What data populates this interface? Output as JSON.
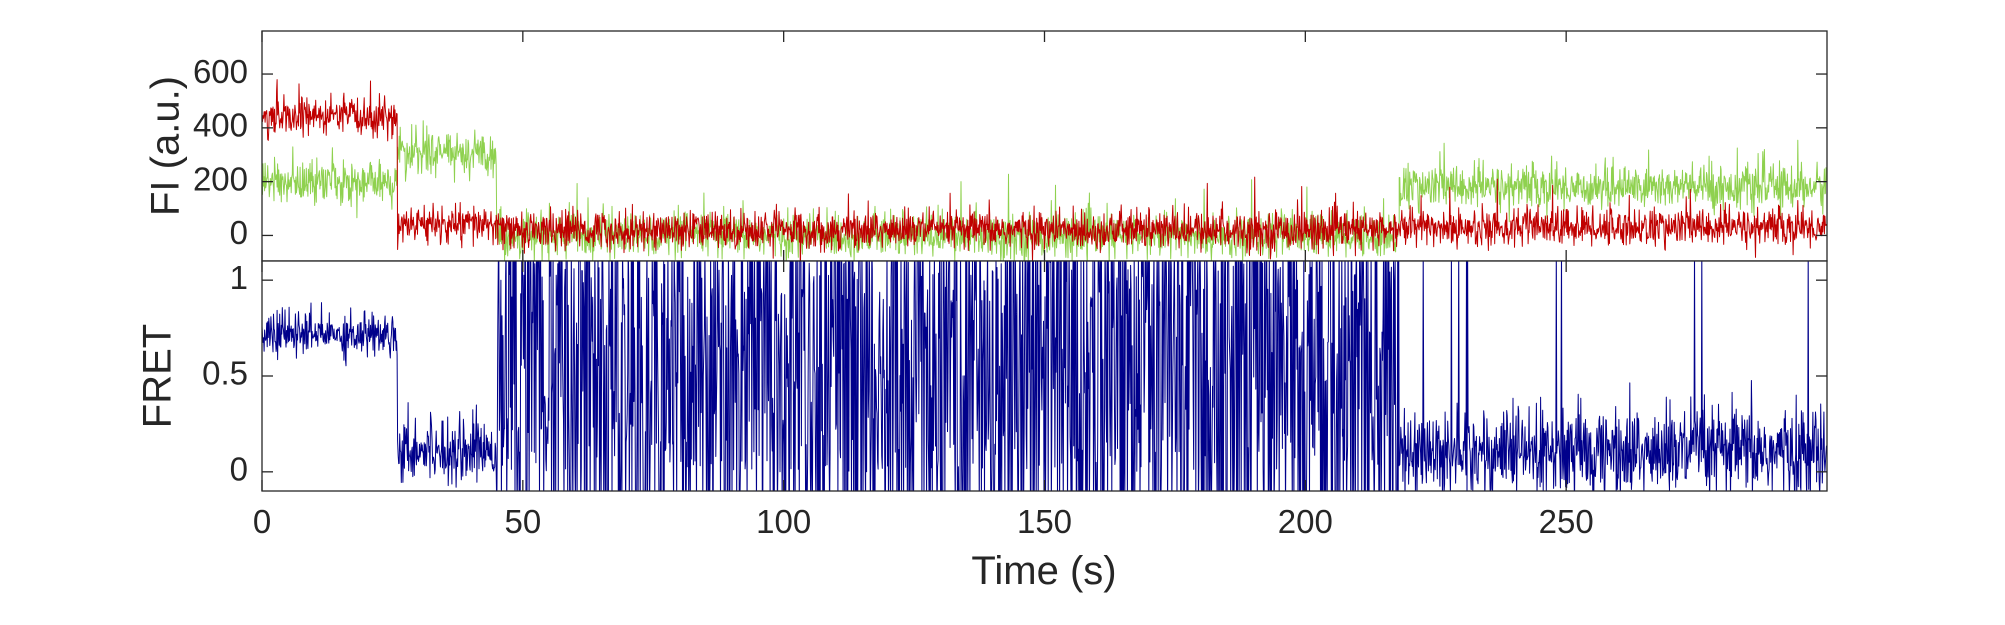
{
  "chart_data": [
    {
      "id": "fluorescence",
      "type": "line",
      "title": "",
      "xlabel": "",
      "ylabel": "FI (a.u.)",
      "xlim": [
        0,
        300
      ],
      "ylim": [
        -95,
        760
      ],
      "x_ticks": [
        0,
        50,
        100,
        150,
        200,
        250
      ],
      "y_ticks": [
        0,
        200,
        400,
        600
      ],
      "grid": false,
      "legend": "none",
      "sample_interval_s": 0.1,
      "series": [
        {
          "key": "donor",
          "color": "#8fd14f",
          "noise": 75,
          "segments": [
            {
              "x_start": 0,
              "x_end": 26,
              "level": 200
            },
            {
              "x_start": 26,
              "x_end": 45,
              "level": 310
            },
            {
              "x_start": 45,
              "x_end": 218,
              "level": 0
            },
            {
              "x_start": 218,
              "x_end": 300,
              "level": 180
            }
          ]
        },
        {
          "key": "acceptor",
          "color": "#c00000",
          "noise": 65,
          "segments": [
            {
              "x_start": 0,
              "x_end": 26,
              "level": 440
            },
            {
              "x_start": 26,
              "x_end": 45,
              "level": 40
            },
            {
              "x_start": 45,
              "x_end": 218,
              "level": 20
            },
            {
              "x_start": 218,
              "x_end": 300,
              "level": 30
            }
          ]
        }
      ]
    },
    {
      "id": "fret",
      "type": "line",
      "title": "",
      "xlabel": "Time (s)",
      "ylabel": "FRET",
      "xlim": [
        0,
        300
      ],
      "ylim": [
        -0.1,
        1.1
      ],
      "x_ticks": [
        0,
        50,
        100,
        150,
        200,
        250
      ],
      "x_tick_labels": [
        "0",
        "50",
        "100",
        "150",
        "200",
        "250"
      ],
      "y_ticks": [
        0,
        0.5,
        1
      ],
      "y_tick_labels": [
        "0",
        "0.5",
        "1"
      ],
      "grid": false,
      "legend": "none",
      "sample_interval_s": 0.1,
      "series": [
        {
          "key": "fret",
          "color": "#00008b",
          "segments": [
            {
              "x_start": 0,
              "x_end": 26,
              "mode": "stable",
              "level": 0.72,
              "noise": 0.12
            },
            {
              "x_start": 26,
              "x_end": 45,
              "mode": "low",
              "level": 0.12,
              "noise": 0.12
            },
            {
              "x_start": 45,
              "x_end": 218,
              "mode": "fluctuating",
              "level": 0.45,
              "noise": 0.35
            },
            {
              "x_start": 218,
              "x_end": 300,
              "mode": "low-spiky",
              "level": 0.1,
              "noise": 0.12
            }
          ]
        }
      ]
    }
  ]
}
